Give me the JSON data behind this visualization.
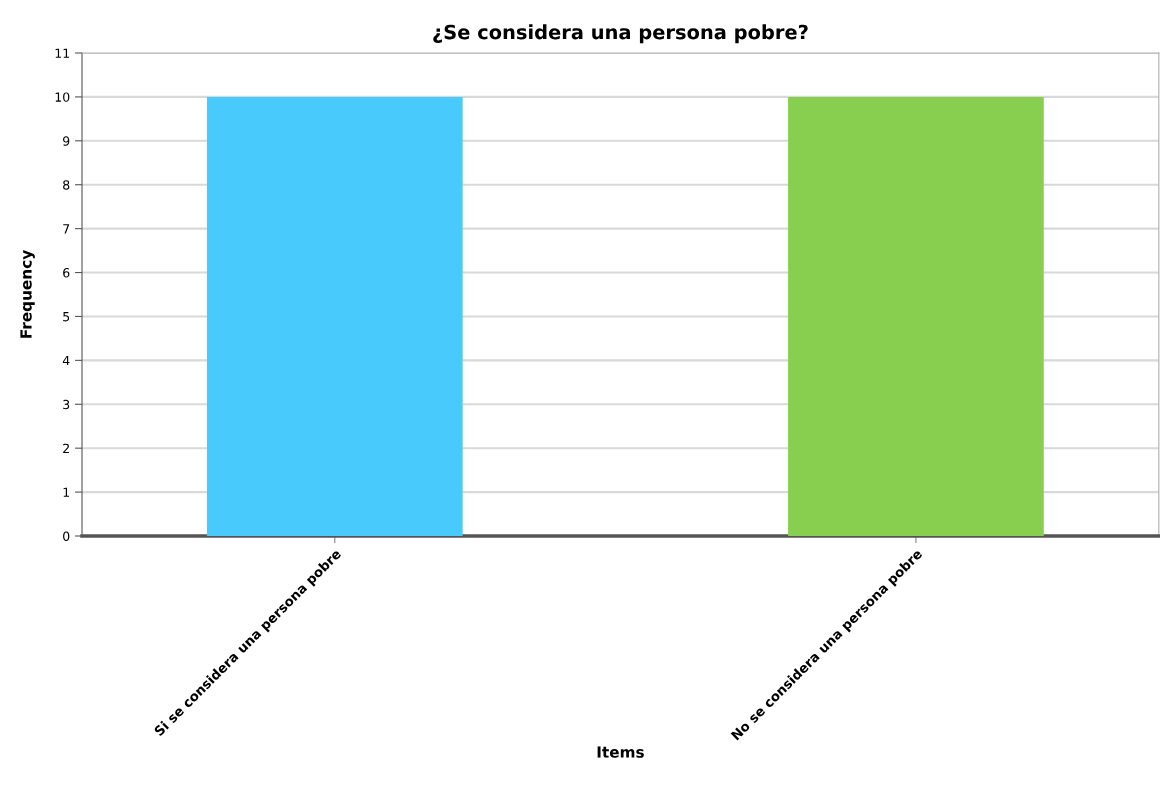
{
  "chart_data": {
    "type": "bar",
    "title": "¿Se considera una persona pobre?",
    "xlabel": "Items",
    "ylabel": "Frequency",
    "categories": [
      "Si se considera una persona pobre",
      "No se considera una persona pobre"
    ],
    "values": [
      10,
      10
    ],
    "colors": [
      "#48cbfc",
      "#88cf4f"
    ],
    "ylim": [
      0,
      11
    ],
    "yticks": [
      0,
      1,
      2,
      3,
      4,
      5,
      6,
      7,
      8,
      9,
      10,
      11
    ],
    "grid": "y",
    "legend": false
  }
}
